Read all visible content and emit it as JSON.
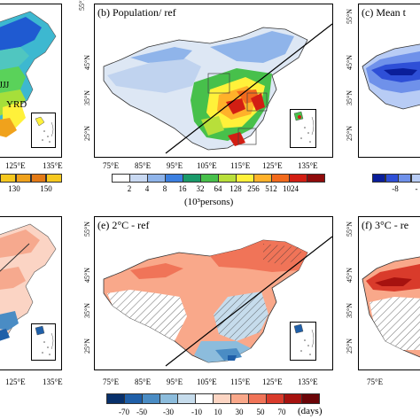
{
  "panels": {
    "a": {
      "title": "",
      "labels": [
        "JJJ",
        "YRD"
      ],
      "x_ticks": [
        "125°E",
        "135°E"
      ],
      "y_ticks": []
    },
    "b": {
      "title": "(b) Population/ ref",
      "x_ticks": [
        "75°E",
        "85°E",
        "95°E",
        "105°E",
        "115°E",
        "125°E",
        "135°E"
      ],
      "y_ticks": [
        "55°N",
        "45°N",
        "35°N",
        "25°N"
      ]
    },
    "c": {
      "title": "(c) Mean t",
      "y_ticks": [
        "55°N",
        "45°N",
        "35°N",
        "25°N"
      ]
    },
    "d": {
      "title": "",
      "x_ticks": [
        "125°E",
        "135°E"
      ]
    },
    "e": {
      "title": "(e) 2°C - ref",
      "x_ticks": [
        "75°E",
        "85°E",
        "95°E",
        "105°E",
        "115°E",
        "125°E",
        "135°E"
      ],
      "y_ticks": [
        "55°N",
        "45°N",
        "35°N",
        "25°N"
      ]
    },
    "f": {
      "title": "(f) 3°C - re",
      "y_ticks": [
        "55°N",
        "45°N",
        "35°N",
        "25°N"
      ],
      "x_ticks": [
        "75°E"
      ]
    }
  },
  "colorbars": {
    "a": {
      "ticks": [
        "130",
        "150"
      ],
      "colors": [
        "#f6c81f",
        "#f0a21c",
        "#e37a16",
        "#ffd83a"
      ]
    },
    "b": {
      "ticks": [
        "2",
        "4",
        "8",
        "16",
        "32",
        "64",
        "128",
        "256",
        "512",
        "1024"
      ],
      "unit": "(10³persons)",
      "colors": [
        "#ffffff",
        "#c9d9f2",
        "#8fb4ea",
        "#3b7fe0",
        "#1a9a6a",
        "#47c04b",
        "#b8df3a",
        "#fff13a",
        "#ffb12a",
        "#f26a1c",
        "#d21e13",
        "#8f0b0b"
      ]
    },
    "c": {
      "ticks": [
        "-8",
        "-"
      ],
      "colors": [
        "#0a1e9a",
        "#2e4fd7",
        "#6f91ea",
        "#b8ccf5"
      ]
    },
    "e": {
      "ticks": [
        "-70",
        "-50",
        "-30",
        "-10",
        "10",
        "30",
        "50",
        "70"
      ],
      "unit": "(days)",
      "colors": [
        "#08306b",
        "#1f5fa8",
        "#4a8cc4",
        "#8cbcdc",
        "#c6dcec",
        "#ffffff",
        "#fcd5c3",
        "#f9a88a",
        "#f07458",
        "#d93b2b",
        "#a6120f",
        "#6b0508"
      ]
    }
  }
}
